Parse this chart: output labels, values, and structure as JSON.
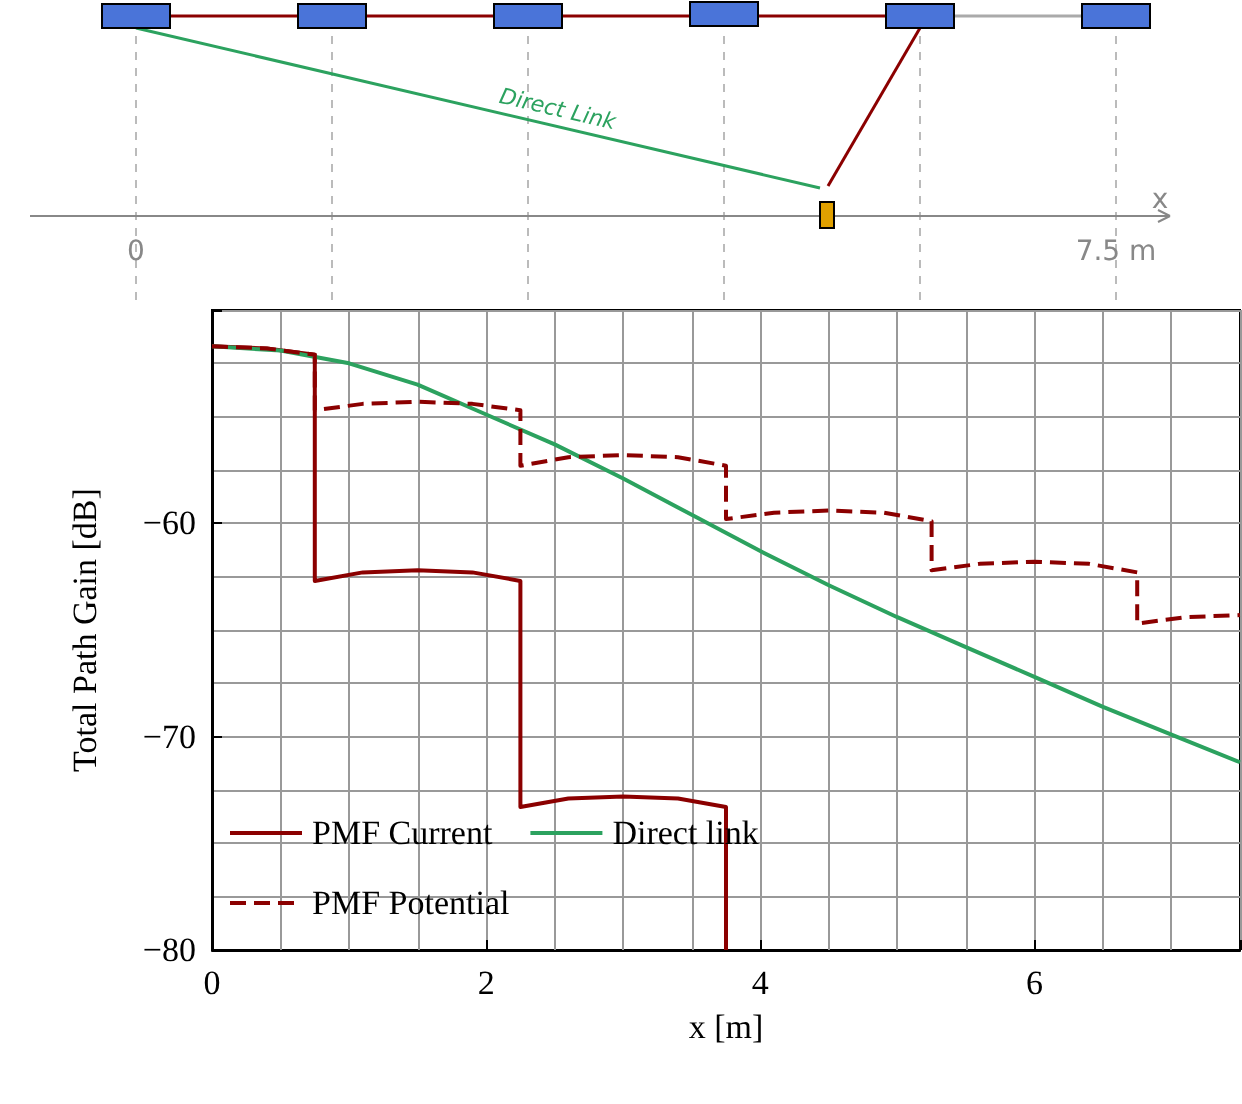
{
  "chart_data": {
    "type": "line",
    "xlabel": "x [m]",
    "ylabel": "Total Path Gain [dB]",
    "xlim": [
      0,
      7.5
    ],
    "xticks": [
      0,
      2,
      4,
      6
    ],
    "ylim": [
      -80,
      -50
    ],
    "yticks": [
      {
        "value": -80,
        "label": "−80"
      },
      {
        "value": -70,
        "label": "−70"
      },
      {
        "value": -60,
        "label": "−60"
      }
    ],
    "grid": true,
    "legend": "bottom left",
    "marker": "none",
    "annotations": [
      "Direct Link",
      "0",
      "7.5 m",
      "x"
    ],
    "series": [
      {
        "name": "PMF Current",
        "color": "#8b0000",
        "line_style": "solid",
        "x": [
          0,
          0.4,
          0.75,
          0.75,
          1.1,
          1.5,
          1.9,
          2.25,
          2.25,
          2.6,
          3,
          3.4,
          3.75,
          3.75
        ],
        "values": [
          -51.7,
          -51.8,
          -52.1,
          -62.7,
          -62.3,
          -62.2,
          -62.3,
          -62.7,
          -73.3,
          -72.9,
          -72.8,
          -72.9,
          -73.3,
          -80
        ]
      },
      {
        "name": "Direct link",
        "color": "#2ca25f",
        "line_style": "solid",
        "x": [
          0,
          0.5,
          1,
          1.5,
          2,
          2.5,
          3,
          3.5,
          4,
          4.5,
          5,
          5.5,
          6,
          6.5,
          7,
          7.5
        ],
        "values": [
          -51.7,
          -51.9,
          -52.5,
          -53.5,
          -54.9,
          -56.3,
          -57.9,
          -59.6,
          -61.3,
          -62.9,
          -64.4,
          -65.8,
          -67.2,
          -68.6,
          -69.9,
          -71.2
        ]
      },
      {
        "name": "PMF Potential",
        "color": "#8b0000",
        "line_style": "dashed",
        "x": [
          0,
          0.4,
          0.75,
          0.75,
          1.1,
          1.5,
          1.9,
          2.25,
          2.25,
          2.6,
          3,
          3.4,
          3.75,
          3.75,
          4.1,
          4.5,
          4.9,
          5.25,
          5.25,
          5.6,
          6,
          6.4,
          6.75,
          6.75,
          7.1,
          7.5
        ],
        "values": [
          -51.7,
          -51.8,
          -52.1,
          -54.7,
          -54.4,
          -54.3,
          -54.4,
          -54.7,
          -57.3,
          -56.9,
          -56.8,
          -56.9,
          -57.3,
          -59.8,
          -59.5,
          -59.4,
          -59.5,
          -59.9,
          -62.2,
          -61.9,
          -61.8,
          -61.9,
          -62.3,
          -64.7,
          -64.4,
          -64.3
        ]
      }
    ]
  }
}
